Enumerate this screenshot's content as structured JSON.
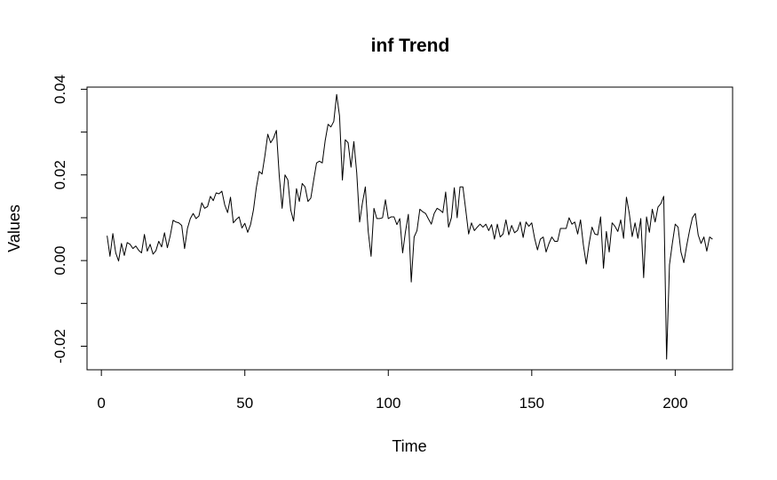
{
  "chart_data": {
    "type": "line",
    "title": "inf Trend",
    "xlabel": "Time",
    "ylabel": "Values",
    "xlim": [
      -5,
      220
    ],
    "ylim": [
      -0.0255,
      0.0405
    ],
    "x_ticks": [
      0,
      50,
      100,
      150,
      200
    ],
    "x_tick_labels": [
      "0",
      "50",
      "100",
      "150",
      "200"
    ],
    "y_ticks": [
      -0.02,
      0,
      0.02,
      0.04
    ],
    "y_tick_labels": [
      "-0.02",
      "0.00",
      "0.02",
      "0.04"
    ],
    "y_minor_ticks": [
      -0.01,
      0.01,
      0.03
    ],
    "grid": false,
    "colors": {
      "line": "#000000",
      "axes": "#000000",
      "background": "#ffffff"
    },
    "series": [
      {
        "x_start": 2,
        "x_step": 1,
        "values": [
          0.0058,
          0.001,
          0.0063,
          0.0018,
          -0.0001,
          0.004,
          0.0012,
          0.0042,
          0.0038,
          0.0028,
          0.0034,
          0.0024,
          0.0018,
          0.0061,
          0.0022,
          0.0038,
          0.0015,
          0.0023,
          0.0045,
          0.0032,
          0.0065,
          0.003,
          0.0058,
          0.0094,
          0.009,
          0.0088,
          0.0082,
          0.0028,
          0.0075,
          0.0098,
          0.011,
          0.0098,
          0.0104,
          0.0135,
          0.0122,
          0.0126,
          0.015,
          0.014,
          0.0158,
          0.0156,
          0.0162,
          0.013,
          0.0112,
          0.0148,
          0.0088,
          0.0096,
          0.0102,
          0.0076,
          0.0087,
          0.0066,
          0.0084,
          0.0118,
          0.017,
          0.0208,
          0.0202,
          0.0245,
          0.0295,
          0.0275,
          0.0286,
          0.0304,
          0.0198,
          0.0122,
          0.02,
          0.0188,
          0.0118,
          0.0092,
          0.0168,
          0.0138,
          0.018,
          0.0172,
          0.0138,
          0.0146,
          0.0188,
          0.0228,
          0.0232,
          0.0228,
          0.028,
          0.0318,
          0.0312,
          0.0325,
          0.0388,
          0.0338,
          0.0188,
          0.0282,
          0.0275,
          0.0218,
          0.0278,
          0.0205,
          0.009,
          0.0135,
          0.0172,
          0.0068,
          0.001,
          0.0122,
          0.0098,
          0.0098,
          0.01,
          0.0142,
          0.0098,
          0.0102,
          0.0102,
          0.0084,
          0.0098,
          0.0018,
          0.0068,
          0.0108,
          -0.005,
          0.0055,
          0.007,
          0.012,
          0.0114,
          0.011,
          0.0097,
          0.0085,
          0.011,
          0.0122,
          0.0118,
          0.0112,
          0.016,
          0.0078,
          0.01,
          0.017,
          0.01,
          0.0172,
          0.0172,
          0.0118,
          0.0062,
          0.0088,
          0.007,
          0.0078,
          0.0085,
          0.0078,
          0.0085,
          0.007,
          0.0084,
          0.005,
          0.0085,
          0.0055,
          0.0062,
          0.0095,
          0.006,
          0.0082,
          0.0065,
          0.007,
          0.009,
          0.0054,
          0.009,
          0.008,
          0.0088,
          0.0052,
          0.0025,
          0.005,
          0.0055,
          0.002,
          0.004,
          0.0055,
          0.0045,
          0.0045,
          0.0075,
          0.0075,
          0.0075,
          0.01,
          0.0085,
          0.009,
          0.0062,
          0.0095,
          0.0036,
          -0.0008,
          0.004,
          0.0078,
          0.0062,
          0.006,
          0.0102,
          -0.0018,
          0.0068,
          0.002,
          0.0088,
          0.008,
          0.0068,
          0.0095,
          0.0052,
          0.0148,
          0.011,
          0.0056,
          0.0088,
          0.0052,
          0.0098,
          -0.004,
          0.0102,
          0.0066,
          0.012,
          0.009,
          0.0125,
          0.0133,
          0.015,
          -0.023,
          -0.001,
          0.004,
          0.0085,
          0.0078,
          0.002,
          -0.0005,
          0.0035,
          0.007,
          0.01,
          0.011,
          0.006,
          0.004,
          0.0055,
          0.0022,
          0.0055,
          0.005
        ]
      }
    ]
  }
}
